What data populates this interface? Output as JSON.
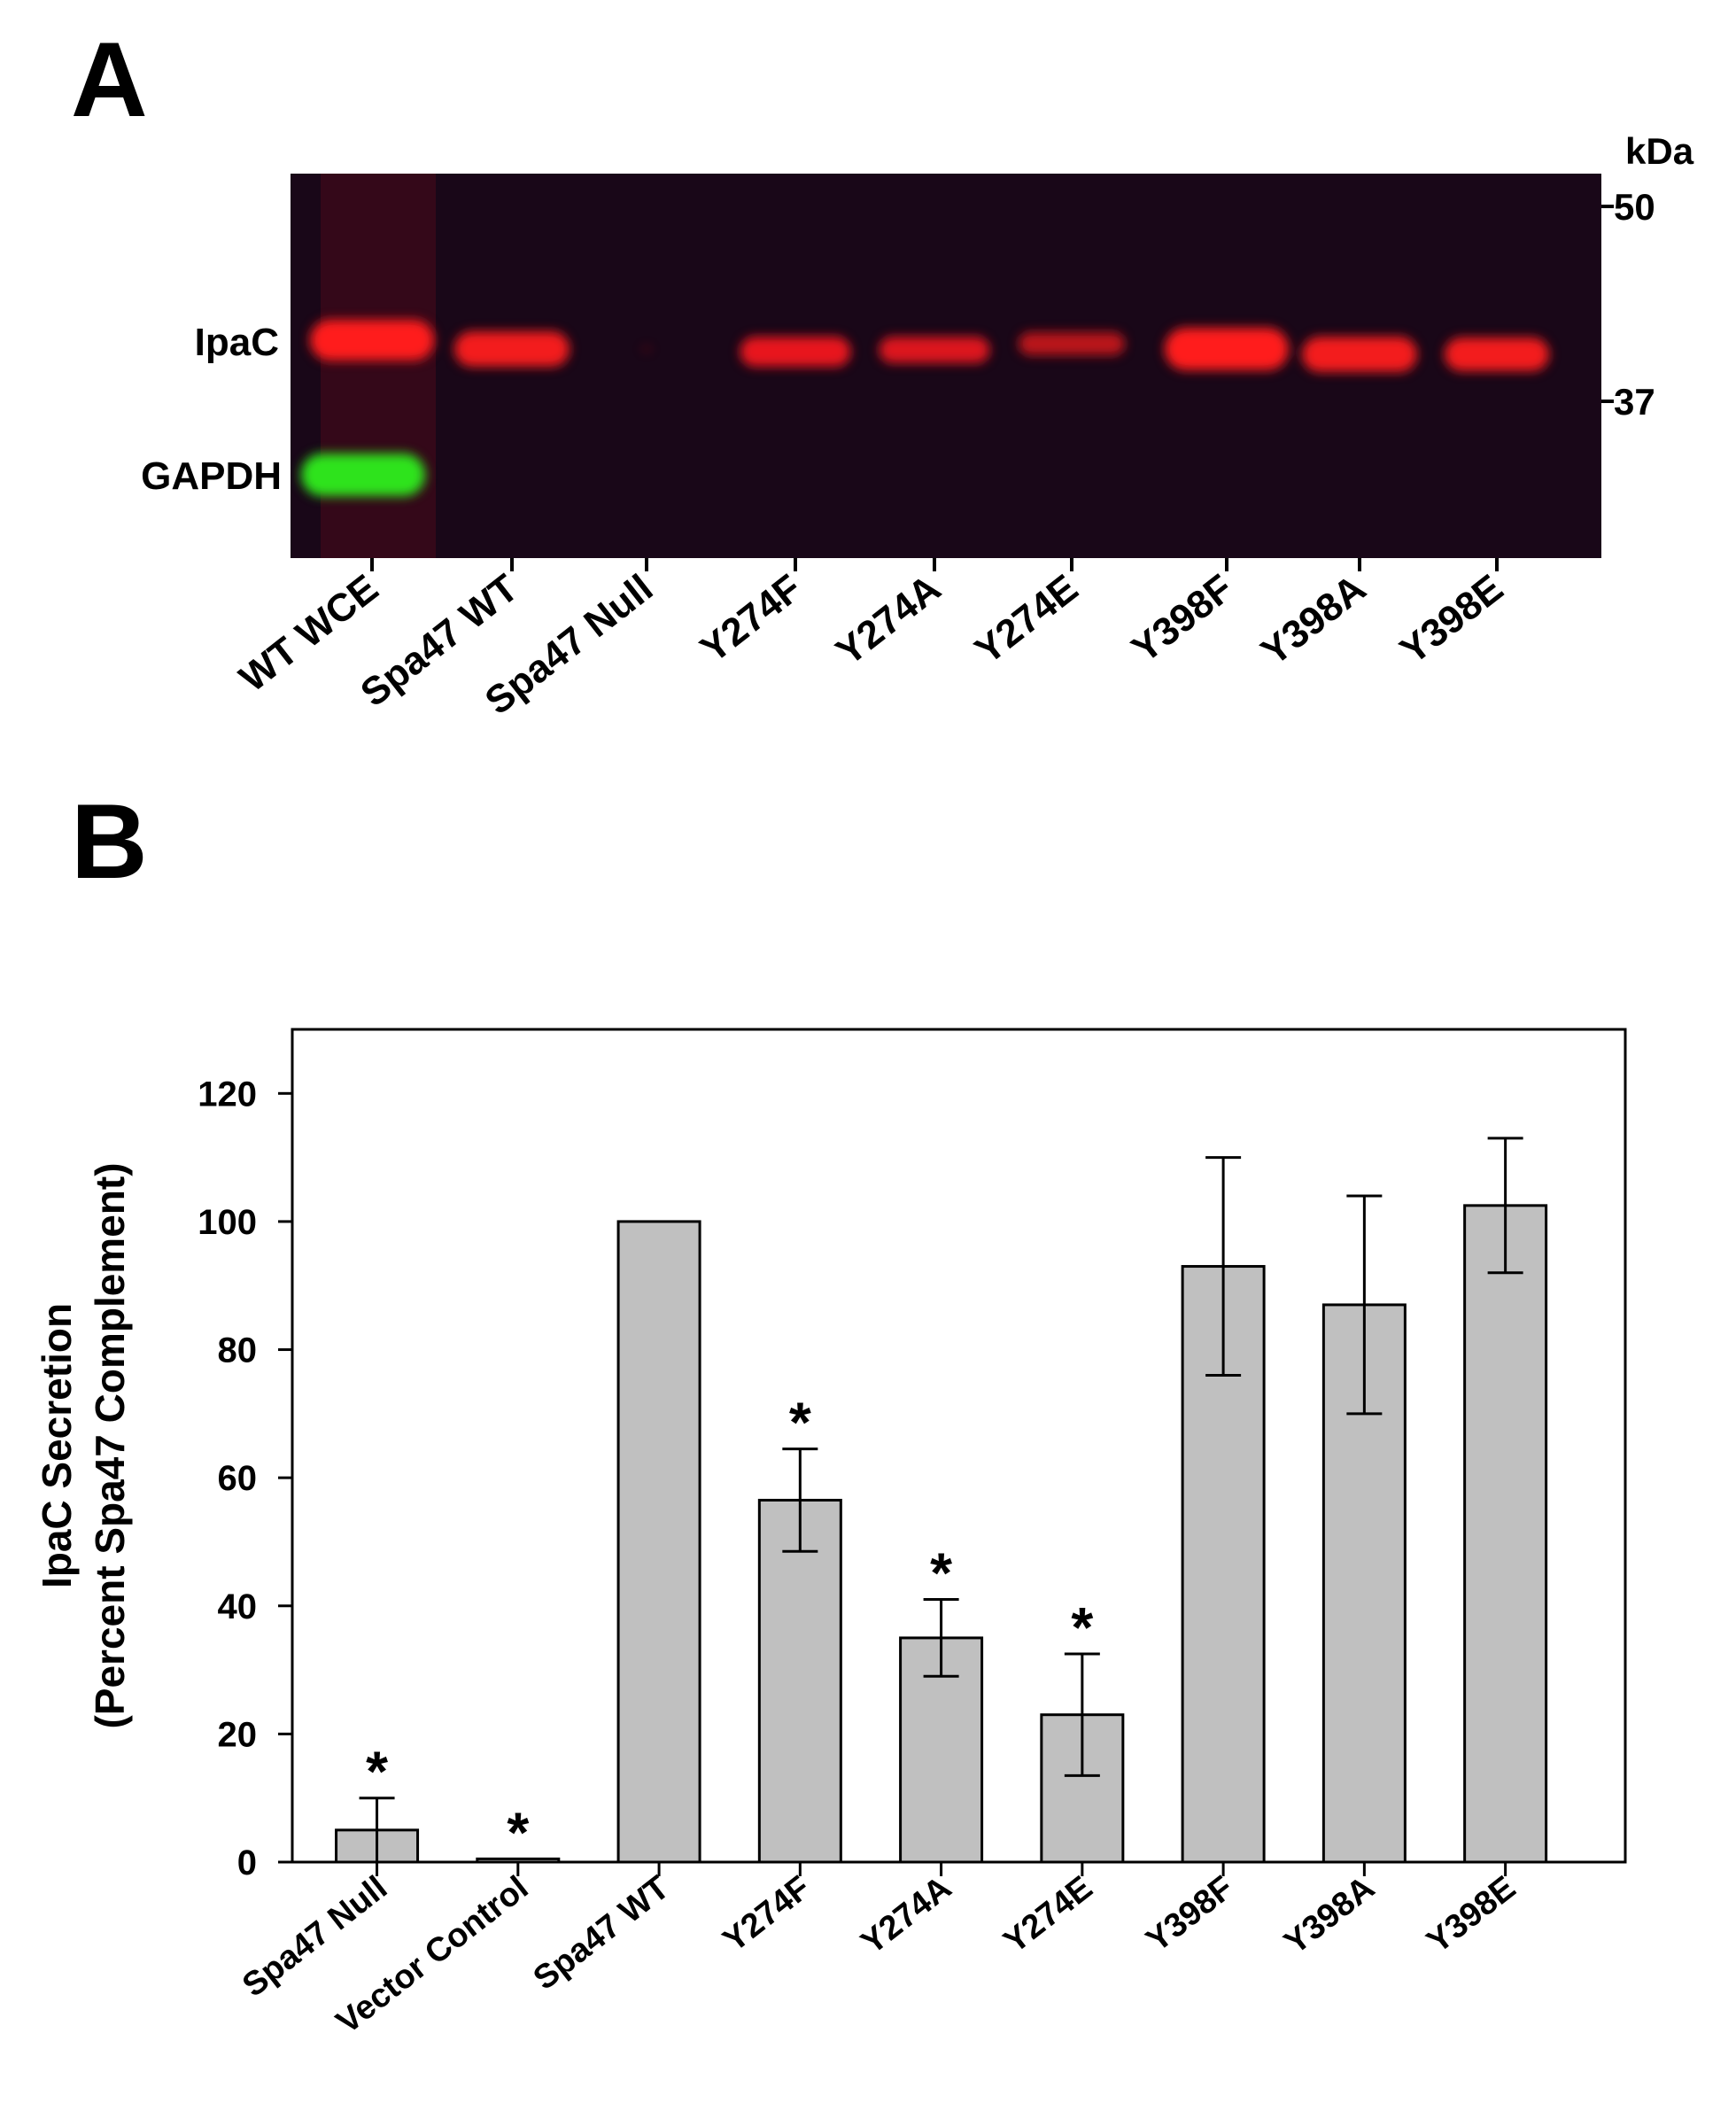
{
  "panel_a": {
    "label": "A",
    "unit": "kDa",
    "markers": [
      "50",
      "37"
    ],
    "band_labels": [
      "IpaC",
      "GAPDH"
    ],
    "lanes": [
      "WT WCE",
      "Spa47 WT",
      "Spa47 Null",
      "Y274F",
      "Y274A",
      "Y274E",
      "Y398F",
      "Y398A",
      "Y398E"
    ],
    "colors": {
      "background": "#190718",
      "ipac": "#ff1a1f",
      "gapdh": "#2ee31f"
    }
  },
  "panel_b": {
    "label": "B"
  },
  "chart_data": {
    "type": "bar",
    "title": "",
    "xlabel": "",
    "ylabel": [
      "IpaC Secretion",
      "(Percent Spa47 Complement)"
    ],
    "ylim": [
      0,
      130
    ],
    "yticks": [
      0,
      20,
      40,
      60,
      80,
      100,
      120
    ],
    "categories": [
      "Spa47 Null",
      "Vector Control",
      "Spa47 WT",
      "Y274F",
      "Y274A",
      "Y274E",
      "Y398F",
      "Y398A",
      "Y398E"
    ],
    "values": [
      5,
      0.5,
      100,
      56.5,
      35,
      23,
      93,
      87,
      102.5
    ],
    "errors": [
      5,
      0,
      0,
      8,
      6,
      9.5,
      17,
      17,
      10.5
    ],
    "significant": [
      true,
      true,
      false,
      true,
      true,
      true,
      false,
      false,
      false
    ],
    "significance_mark": "*",
    "bar_color": "#c0c0c0",
    "grid": false
  }
}
